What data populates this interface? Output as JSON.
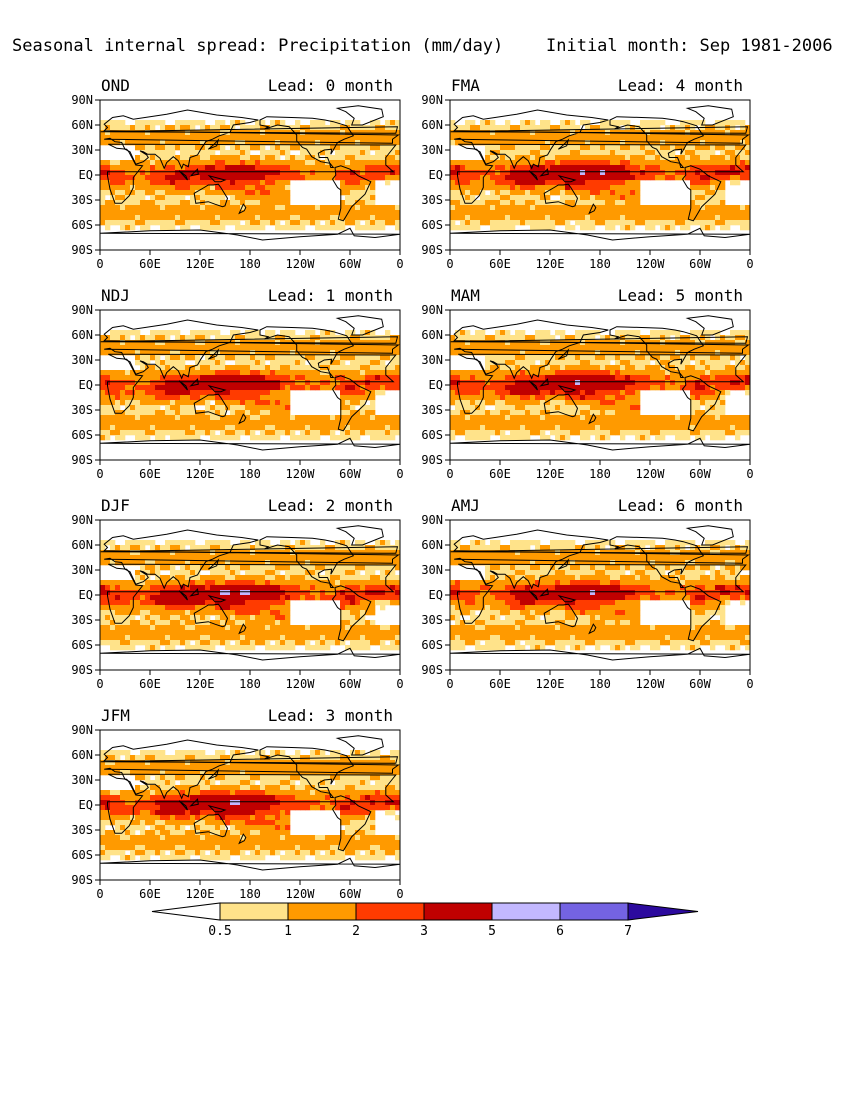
{
  "header": {
    "title": "Seasonal internal spread: Precipitation (mm/day)",
    "initial": "Initial month: Sep 1981-2006"
  },
  "axes": {
    "lat_ticks": [
      "90N",
      "60N",
      "30N",
      "EQ",
      "30S",
      "60S",
      "90S"
    ],
    "lon_ticks": [
      "0",
      "60E",
      "120E",
      "180",
      "120W",
      "60W",
      "0"
    ]
  },
  "panels": [
    {
      "season": "OND",
      "lead": "Lead: 0 month"
    },
    {
      "season": "FMA",
      "lead": "Lead: 4 month"
    },
    {
      "season": "NDJ",
      "lead": "Lead: 1 month"
    },
    {
      "season": "MAM",
      "lead": "Lead: 5 month"
    },
    {
      "season": "DJF",
      "lead": "Lead: 2 month"
    },
    {
      "season": "AMJ",
      "lead": "Lead: 6 month"
    },
    {
      "season": "JFM",
      "lead": "Lead: 3 month"
    }
  ],
  "colorbar": {
    "levels": [
      "0.5",
      "1",
      "2",
      "3",
      "5",
      "6",
      "7"
    ],
    "colors": [
      "#ffffff",
      "#ffe38a",
      "#ff9a00",
      "#ff3b00",
      "#c00000",
      "#c3b8ff",
      "#7463e3",
      "#2c0a9e"
    ]
  }
}
